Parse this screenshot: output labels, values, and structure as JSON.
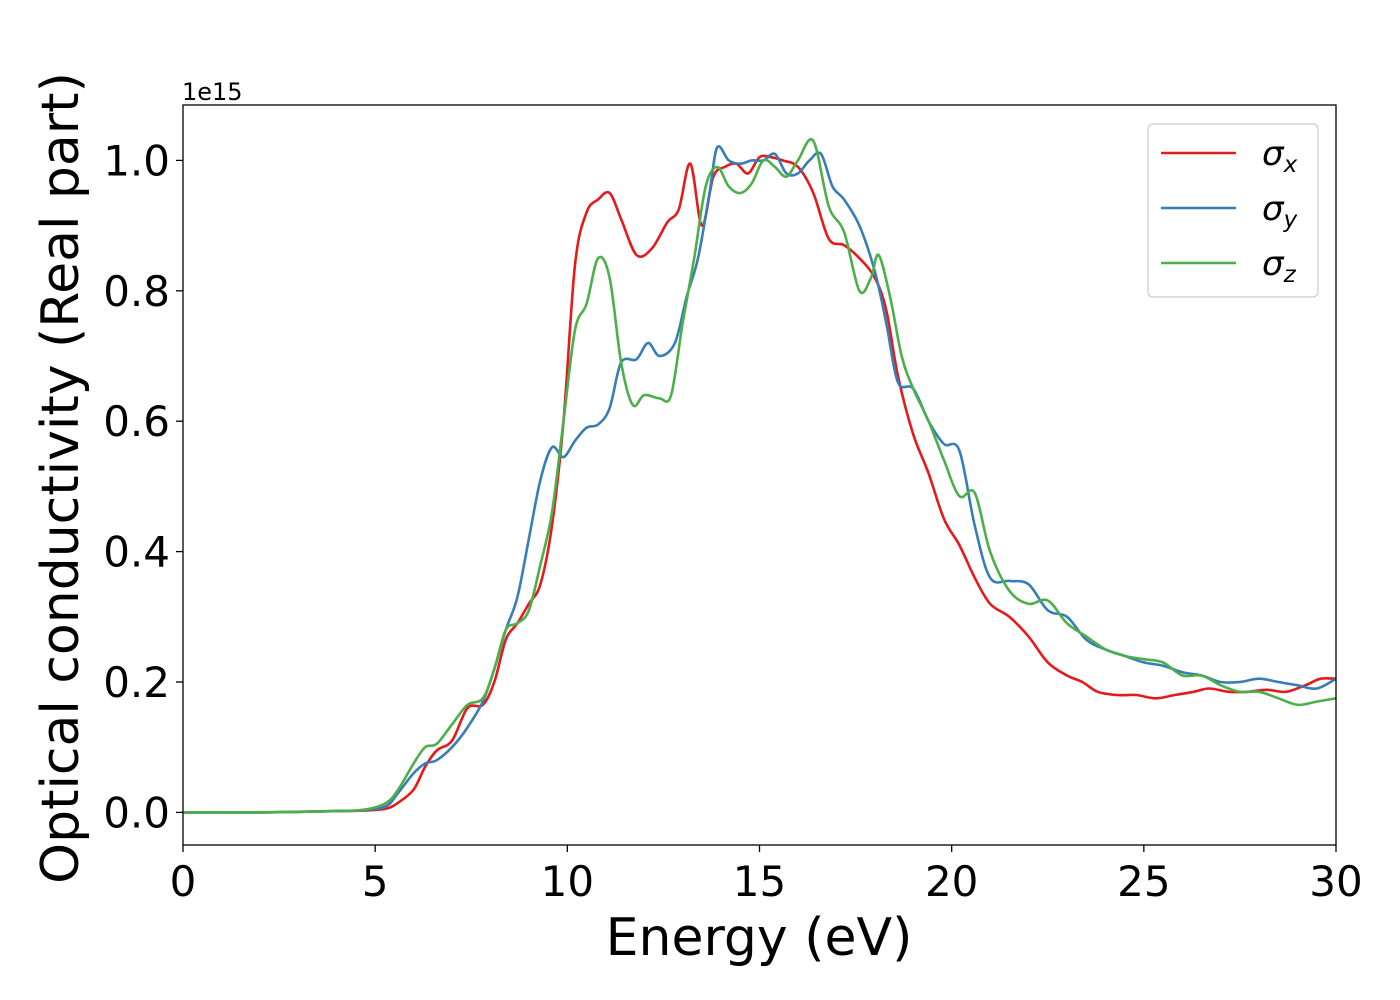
{
  "chart_data": {
    "type": "line",
    "xlabel": "Energy (eV)",
    "ylabel": "Optical conductivity (Real part)",
    "offset_text": "1e15",
    "xlim": [
      0,
      30
    ],
    "ylim": [
      -0.05,
      1.085
    ],
    "xticks": [
      0,
      5,
      10,
      15,
      20,
      25,
      30
    ],
    "xtick_labels": [
      "0",
      "5",
      "10",
      "15",
      "20",
      "25",
      "30"
    ],
    "yticks": [
      0.0,
      0.2,
      0.4,
      0.6,
      0.8,
      1.0
    ],
    "ytick_labels": [
      "0.0",
      "0.2",
      "0.4",
      "0.6",
      "0.8",
      "1.0"
    ],
    "grid": false,
    "legend_position": "top-right",
    "series": [
      {
        "name": "σx",
        "label_base": "σ",
        "label_sub": "x",
        "color": "#e41a1c",
        "x": [
          0,
          2,
          4,
          4.8,
          5.3,
          5.6,
          6.0,
          6.3,
          6.6,
          7.0,
          7.4,
          7.8,
          8.1,
          8.4,
          8.7,
          9.0,
          9.3,
          9.6,
          9.9,
          10.2,
          10.5,
          10.8,
          11.1,
          11.4,
          11.8,
          12.2,
          12.6,
          12.9,
          13.2,
          13.5,
          13.8,
          14.1,
          14.4,
          14.7,
          15.0,
          15.3,
          15.6,
          16.0,
          16.4,
          16.8,
          17.2,
          17.6,
          18.0,
          18.3,
          18.6,
          19.0,
          19.4,
          19.8,
          20.2,
          20.6,
          21.0,
          21.5,
          22.0,
          22.5,
          23.0,
          23.4,
          23.8,
          24.3,
          24.8,
          25.3,
          25.8,
          26.3,
          26.7,
          27.2,
          27.7,
          28.2,
          28.7,
          29.2,
          29.6,
          30.0
        ],
        "y": [
          0.0,
          0.0,
          0.002,
          0.003,
          0.006,
          0.015,
          0.035,
          0.07,
          0.095,
          0.11,
          0.16,
          0.165,
          0.2,
          0.265,
          0.29,
          0.32,
          0.35,
          0.44,
          0.6,
          0.84,
          0.92,
          0.94,
          0.95,
          0.91,
          0.855,
          0.865,
          0.905,
          0.925,
          0.995,
          0.9,
          0.975,
          0.99,
          0.995,
          0.98,
          1.005,
          1.005,
          1.0,
          0.99,
          0.95,
          0.88,
          0.87,
          0.85,
          0.82,
          0.77,
          0.67,
          0.58,
          0.52,
          0.45,
          0.41,
          0.36,
          0.32,
          0.3,
          0.27,
          0.23,
          0.21,
          0.2,
          0.185,
          0.18,
          0.18,
          0.175,
          0.18,
          0.185,
          0.19,
          0.185,
          0.185,
          0.188,
          0.185,
          0.195,
          0.205,
          0.205
        ]
      },
      {
        "name": "σy",
        "label_base": "σ",
        "label_sub": "y",
        "color": "#377eb8",
        "x": [
          0,
          2,
          4,
          4.8,
          5.3,
          5.6,
          6.0,
          6.3,
          6.6,
          7.0,
          7.4,
          7.8,
          8.1,
          8.4,
          8.7,
          9.0,
          9.3,
          9.6,
          9.9,
          10.2,
          10.5,
          10.8,
          11.1,
          11.4,
          11.8,
          12.1,
          12.4,
          12.8,
          13.1,
          13.4,
          13.7,
          13.9,
          14.2,
          14.5,
          14.8,
          15.1,
          15.4,
          15.7,
          16.0,
          16.3,
          16.6,
          16.9,
          17.2,
          17.6,
          18.0,
          18.3,
          18.6,
          19.0,
          19.4,
          19.8,
          20.2,
          20.6,
          21.0,
          21.5,
          22.0,
          22.5,
          23.0,
          23.5,
          24.0,
          24.5,
          25.0,
          25.5,
          26.0,
          26.5,
          27.0,
          27.5,
          28.0,
          28.5,
          29.0,
          29.5,
          30.0
        ],
        "y": [
          0.0,
          0.0,
          0.002,
          0.004,
          0.01,
          0.03,
          0.06,
          0.075,
          0.08,
          0.1,
          0.13,
          0.17,
          0.22,
          0.28,
          0.33,
          0.42,
          0.51,
          0.56,
          0.545,
          0.57,
          0.59,
          0.595,
          0.62,
          0.69,
          0.695,
          0.72,
          0.7,
          0.72,
          0.79,
          0.85,
          0.95,
          1.02,
          1.0,
          0.995,
          1.0,
          1.0,
          1.01,
          0.98,
          0.98,
          1.0,
          1.01,
          0.96,
          0.94,
          0.9,
          0.83,
          0.75,
          0.66,
          0.65,
          0.6,
          0.565,
          0.555,
          0.44,
          0.36,
          0.355,
          0.35,
          0.31,
          0.3,
          0.265,
          0.25,
          0.24,
          0.23,
          0.225,
          0.215,
          0.21,
          0.2,
          0.2,
          0.205,
          0.2,
          0.195,
          0.19,
          0.205
        ]
      },
      {
        "name": "σz",
        "label_base": "σ",
        "label_sub": "z",
        "color": "#4daf4a",
        "x": [
          0,
          2,
          4,
          4.8,
          5.3,
          5.6,
          6.0,
          6.3,
          6.6,
          7.0,
          7.4,
          7.8,
          8.1,
          8.4,
          8.7,
          9.0,
          9.3,
          9.6,
          9.9,
          10.2,
          10.5,
          10.8,
          11.1,
          11.4,
          11.7,
          12.0,
          12.4,
          12.7,
          13.0,
          13.3,
          13.6,
          13.9,
          14.2,
          14.5,
          14.8,
          15.1,
          15.4,
          15.7,
          16.0,
          16.4,
          16.8,
          17.2,
          17.6,
          17.9,
          18.1,
          18.4,
          18.7,
          19.0,
          19.4,
          19.8,
          20.2,
          20.6,
          21.0,
          21.5,
          22.0,
          22.5,
          23.0,
          23.5,
          24.0,
          24.5,
          25.0,
          25.5,
          26.0,
          26.5,
          27.0,
          27.5,
          28.0,
          28.5,
          29.0,
          29.5,
          30.0
        ],
        "y": [
          0.0,
          0.0,
          0.002,
          0.005,
          0.015,
          0.035,
          0.075,
          0.1,
          0.105,
          0.135,
          0.165,
          0.175,
          0.22,
          0.28,
          0.29,
          0.31,
          0.38,
          0.46,
          0.6,
          0.74,
          0.78,
          0.85,
          0.82,
          0.69,
          0.625,
          0.64,
          0.635,
          0.64,
          0.75,
          0.85,
          0.96,
          0.99,
          0.96,
          0.95,
          0.965,
          1.0,
          0.99,
          0.975,
          1.0,
          1.03,
          0.93,
          0.89,
          0.8,
          0.82,
          0.855,
          0.79,
          0.7,
          0.65,
          0.6,
          0.54,
          0.485,
          0.49,
          0.4,
          0.34,
          0.32,
          0.325,
          0.29,
          0.27,
          0.25,
          0.24,
          0.235,
          0.23,
          0.21,
          0.21,
          0.195,
          0.185,
          0.185,
          0.175,
          0.165,
          0.17,
          0.175
        ]
      }
    ]
  }
}
